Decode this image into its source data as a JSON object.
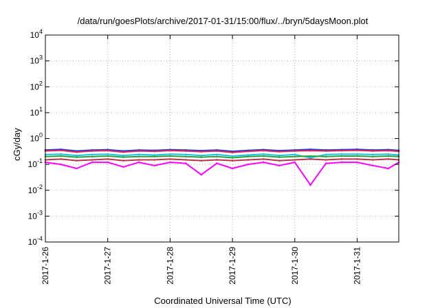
{
  "chart_data": {
    "type": "line",
    "title": "/data/run/goesPlots/archive/2017-01-31/15:00/flux/../bryn/5daysMoon.plot",
    "xlabel": "Coordinated Universal Time (UTC)",
    "ylabel": "cGy/day",
    "y_scale": "log",
    "ylim": [
      0.0001,
      10000
    ],
    "xlim": [
      "2017-01-26",
      "2017-01-31 16:00"
    ],
    "grid": true,
    "x_ticks": [
      "2017-1-26",
      "2017-1-27",
      "2017-1-28",
      "2017-1-29",
      "2017-1-30",
      "2017-1-31"
    ],
    "y_ticks": [
      {
        "base": "10",
        "exp": "-4",
        "value": 0.0001
      },
      {
        "base": "10",
        "exp": "-3",
        "value": 0.001
      },
      {
        "base": "10",
        "exp": "-2",
        "value": 0.01
      },
      {
        "base": "10",
        "exp": "-1",
        "value": 0.1
      },
      {
        "base": "10",
        "exp": "0",
        "value": 1
      },
      {
        "base": "10",
        "exp": "1",
        "value": 10
      },
      {
        "base": "10",
        "exp": "2",
        "value": 100
      },
      {
        "base": "10",
        "exp": "3",
        "value": 1000
      },
      {
        "base": "10",
        "exp": "4",
        "value": 10000
      }
    ],
    "x": [
      "2017-01-26 00:00",
      "2017-01-26 06:00",
      "2017-01-26 12:00",
      "2017-01-26 18:00",
      "2017-01-27 00:00",
      "2017-01-27 06:00",
      "2017-01-27 12:00",
      "2017-01-27 18:00",
      "2017-01-28 00:00",
      "2017-01-28 06:00",
      "2017-01-28 12:00",
      "2017-01-28 18:00",
      "2017-01-29 00:00",
      "2017-01-29 06:00",
      "2017-01-29 12:00",
      "2017-01-29 18:00",
      "2017-01-30 00:00",
      "2017-01-30 06:00",
      "2017-01-30 12:00",
      "2017-01-30 18:00",
      "2017-01-31 00:00",
      "2017-01-31 06:00",
      "2017-01-31 12:00",
      "2017-01-31 16:00"
    ],
    "series": [
      {
        "color": "#1f3bd6",
        "values": [
          0.36,
          0.38,
          0.33,
          0.36,
          0.37,
          0.33,
          0.36,
          0.35,
          0.37,
          0.36,
          0.34,
          0.36,
          0.32,
          0.35,
          0.37,
          0.34,
          0.36,
          0.38,
          0.36,
          0.37,
          0.38,
          0.36,
          0.37,
          0.35
        ]
      },
      {
        "color": "#e0245e",
        "values": [
          0.33,
          0.35,
          0.3,
          0.33,
          0.34,
          0.3,
          0.33,
          0.32,
          0.34,
          0.33,
          0.31,
          0.33,
          0.29,
          0.32,
          0.34,
          0.31,
          0.33,
          0.34,
          0.33,
          0.34,
          0.35,
          0.33,
          0.34,
          0.32
        ]
      },
      {
        "color": "#17c3e0",
        "values": [
          0.24,
          0.25,
          0.22,
          0.24,
          0.25,
          0.22,
          0.24,
          0.23,
          0.25,
          0.24,
          0.22,
          0.24,
          0.21,
          0.23,
          0.25,
          0.22,
          0.24,
          0.18,
          0.24,
          0.25,
          0.25,
          0.24,
          0.25,
          0.23
        ]
      },
      {
        "color": "#2e9e3e",
        "values": [
          0.2,
          0.21,
          0.19,
          0.2,
          0.21,
          0.19,
          0.2,
          0.2,
          0.21,
          0.2,
          0.19,
          0.2,
          0.18,
          0.2,
          0.21,
          0.19,
          0.2,
          0.21,
          0.2,
          0.21,
          0.21,
          0.2,
          0.21,
          0.2
        ]
      },
      {
        "color": "#b8324a",
        "values": [
          0.15,
          0.16,
          0.14,
          0.15,
          0.16,
          0.14,
          0.15,
          0.15,
          0.16,
          0.15,
          0.14,
          0.15,
          0.14,
          0.15,
          0.16,
          0.14,
          0.15,
          0.16,
          0.15,
          0.16,
          0.16,
          0.15,
          0.16,
          0.15
        ]
      },
      {
        "color": "#ff00ff",
        "values": [
          0.12,
          0.1,
          0.07,
          0.12,
          0.12,
          0.08,
          0.12,
          0.09,
          0.12,
          0.11,
          0.04,
          0.11,
          0.07,
          0.1,
          0.12,
          0.09,
          0.12,
          0.016,
          0.11,
          0.12,
          0.12,
          0.09,
          0.07,
          0.12
        ]
      }
    ]
  }
}
